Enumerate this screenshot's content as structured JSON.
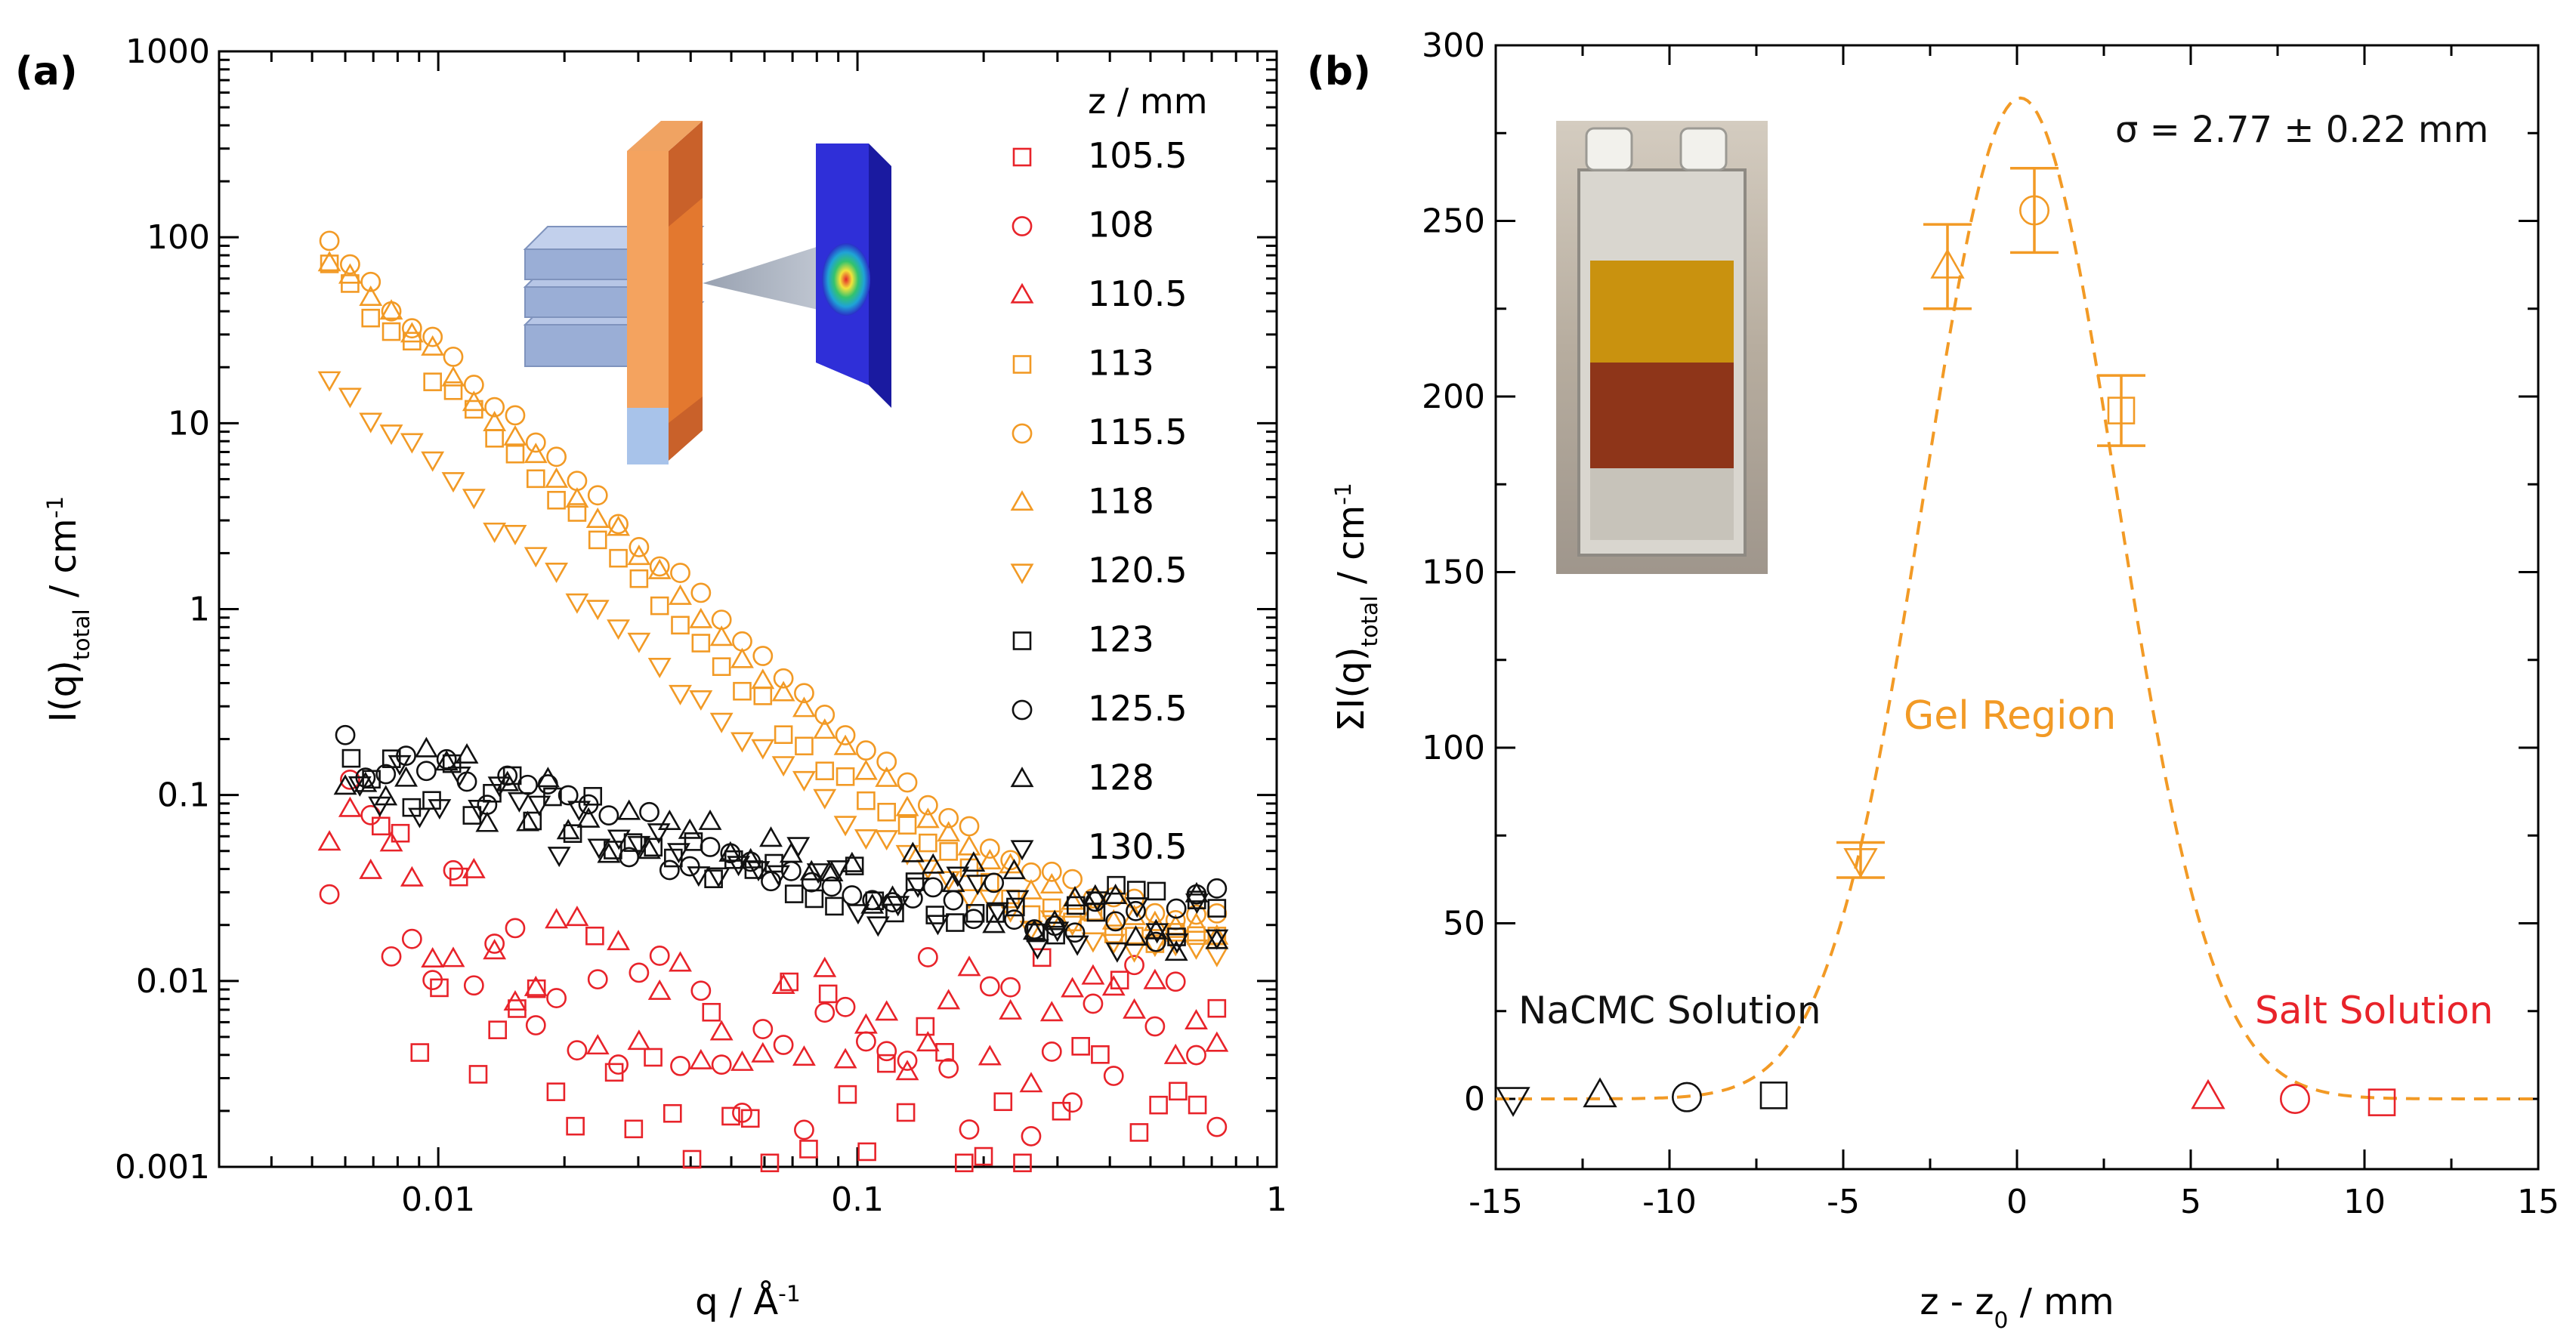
{
  "colors": {
    "red": "#e8232a",
    "orange": "#f29a25",
    "black": "#111111",
    "blue": "#1e1ed2"
  },
  "chart_data": [
    {
      "type": "scatter",
      "panel_label": "(a)",
      "xlabel": {
        "main": "q / Å",
        "sup": "-1"
      },
      "ylabel": {
        "main": "I(q)",
        "sub": "total",
        "rest": " / cm",
        "sup": "-1"
      },
      "xscale": "log",
      "yscale": "log",
      "xlim": [
        0.003,
        1
      ],
      "ylim": [
        0.001,
        1000
      ],
      "x_ticks": [
        {
          "v": 0.01,
          "label": "0.01"
        },
        {
          "v": 0.1,
          "label": "0.1"
        },
        {
          "v": 1,
          "label": "1"
        }
      ],
      "y_ticks": [
        {
          "v": 0.001,
          "label": "0.001"
        },
        {
          "v": 0.01,
          "label": "0.01"
        },
        {
          "v": 0.1,
          "label": "0.1"
        },
        {
          "v": 1,
          "label": "1"
        },
        {
          "v": 10,
          "label": "10"
        },
        {
          "v": 100,
          "label": "100"
        },
        {
          "v": 1000,
          "label": "1000"
        }
      ],
      "legend_title": "z / mm",
      "legend_position": "right",
      "series": [
        {
          "name": "105.5",
          "color": "red",
          "marker": "square",
          "q_min": 0.0073,
          "base": 0.003,
          "amp": 0.012,
          "qc": 0.009,
          "k": 2.0,
          "noise": 0.65
        },
        {
          "name": "108",
          "color": "red",
          "marker": "circle",
          "q_min": 0.0055,
          "base": 0.0045,
          "amp": 0.04,
          "qc": 0.007,
          "k": 2.0,
          "noise": 0.5
        },
        {
          "name": "110.5",
          "color": "red",
          "marker": "triangle-up",
          "q_min": 0.0055,
          "base": 0.006,
          "amp": 0.03,
          "qc": 0.008,
          "k": 2.0,
          "noise": 0.35
        },
        {
          "name": "113",
          "color": "orange",
          "marker": "square",
          "q_min": 0.0055,
          "base": 0.016,
          "amp": 70,
          "qc": 0.0055,
          "k": 2.3,
          "noise": 0.06
        },
        {
          "name": "115.5",
          "color": "orange",
          "marker": "circle",
          "q_min": 0.0055,
          "base": 0.019,
          "amp": 90,
          "qc": 0.0055,
          "k": 2.15,
          "noise": 0.04
        },
        {
          "name": "118",
          "color": "orange",
          "marker": "triangle-up",
          "q_min": 0.0055,
          "base": 0.017,
          "amp": 80,
          "qc": 0.0055,
          "k": 2.2,
          "noise": 0.05
        },
        {
          "name": "120.5",
          "color": "orange",
          "marker": "triangle-down",
          "q_min": 0.0055,
          "base": 0.013,
          "amp": 18,
          "qc": 0.0055,
          "k": 2.0,
          "noise": 0.05
        },
        {
          "name": "123",
          "color": "black",
          "marker": "square",
          "q_min": 0.0062,
          "base": 0.016,
          "amp": 0.06,
          "qc": 0.02,
          "k": 0.7,
          "noise": 0.18
        },
        {
          "name": "125.5",
          "color": "black",
          "marker": "circle",
          "q_min": 0.006,
          "base": 0.016,
          "amp": 0.07,
          "qc": 0.018,
          "k": 0.7,
          "noise": 0.18
        },
        {
          "name": "128",
          "color": "black",
          "marker": "triangle-up",
          "q_min": 0.006,
          "base": 0.015,
          "amp": 0.07,
          "qc": 0.018,
          "k": 0.7,
          "noise": 0.18
        },
        {
          "name": "130.5",
          "color": "black",
          "marker": "triangle-down",
          "q_min": 0.0065,
          "base": 0.012,
          "amp": 0.06,
          "qc": 0.02,
          "k": 0.7,
          "noise": 0.2
        }
      ]
    },
    {
      "type": "scatter",
      "panel_label": "(b)",
      "xlabel": {
        "main": "z - z",
        "sub": "0",
        "rest": " / mm"
      },
      "ylabel": {
        "main": "ΣI(q)",
        "sub": "total",
        "rest": " / cm",
        "sup": "-1"
      },
      "xlim": [
        -15,
        15
      ],
      "ylim": [
        -20,
        300
      ],
      "x_ticks": [
        {
          "v": -15,
          "label": "-15"
        },
        {
          "v": -10,
          "label": "-10"
        },
        {
          "v": -5,
          "label": "-5"
        },
        {
          "v": 0,
          "label": "0"
        },
        {
          "v": 5,
          "label": "5"
        },
        {
          "v": 10,
          "label": "10"
        },
        {
          "v": 15,
          "label": "15"
        }
      ],
      "y_ticks": [
        {
          "v": 0,
          "label": "0"
        },
        {
          "v": 50,
          "label": "50"
        },
        {
          "v": 100,
          "label": "100"
        },
        {
          "v": 150,
          "label": "150"
        },
        {
          "v": 200,
          "label": "200"
        },
        {
          "v": 250,
          "label": "250"
        },
        {
          "v": 300,
          "label": "300"
        }
      ],
      "points": [
        {
          "x": -14.5,
          "y": 0,
          "marker": "triangle-down",
          "color": "black"
        },
        {
          "x": -12,
          "y": 1,
          "marker": "triangle-up",
          "color": "black"
        },
        {
          "x": -9.5,
          "y": 0.5,
          "marker": "circle",
          "color": "black"
        },
        {
          "x": -7,
          "y": 1,
          "marker": "square",
          "color": "black"
        },
        {
          "x": -4.5,
          "y": 68,
          "marker": "triangle-down",
          "color": "orange",
          "err": 5
        },
        {
          "x": -2,
          "y": 237,
          "marker": "triangle-up",
          "color": "orange",
          "err": 12
        },
        {
          "x": 0.5,
          "y": 253,
          "marker": "circle",
          "color": "orange",
          "err": 12
        },
        {
          "x": 3,
          "y": 196,
          "marker": "square",
          "color": "orange",
          "err": 10
        },
        {
          "x": 5.5,
          "y": 0.5,
          "marker": "triangle-up",
          "color": "red"
        },
        {
          "x": 8,
          "y": 0,
          "marker": "circle",
          "color": "red"
        },
        {
          "x": 10.5,
          "y": -1,
          "marker": "square",
          "color": "red"
        }
      ],
      "fit": {
        "type": "gaussian",
        "amplitude": 285,
        "center": 0.1,
        "sigma": 2.77,
        "style": "dashed",
        "color": "orange"
      },
      "annotations": [
        {
          "key": "sigma",
          "text": "σ = 2.77 ± 0.22 mm",
          "color": "black"
        },
        {
          "key": "gel",
          "text": "Gel Region",
          "color": "orange"
        },
        {
          "key": "nacmc",
          "text": "NaCMC Solution",
          "color": "black"
        },
        {
          "key": "salt",
          "text": "Salt Solution",
          "color": "red"
        }
      ]
    }
  ]
}
